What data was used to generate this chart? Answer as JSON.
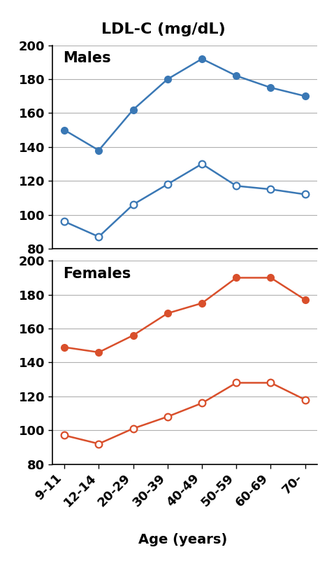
{
  "title": "LDL-C (mg/dL)",
  "xlabel": "Age (years)",
  "age_labels": [
    "9-11",
    "12-14",
    "20-29",
    "30-39",
    "40-49",
    "50-59",
    "60-69",
    "70-"
  ],
  "males": {
    "label": "Males",
    "filled": [
      150,
      138,
      162,
      180,
      192,
      182,
      175,
      170
    ],
    "open": [
      96,
      87,
      106,
      118,
      130,
      117,
      115,
      112
    ]
  },
  "females": {
    "label": "Females",
    "filled": [
      149,
      146,
      156,
      169,
      175,
      190,
      190,
      177
    ],
    "open": [
      97,
      92,
      101,
      108,
      116,
      128,
      128,
      118
    ]
  },
  "blue_color": "#3a78b5",
  "red_color": "#d94f2b",
  "ylim": [
    80,
    200
  ],
  "yticks": [
    80,
    100,
    120,
    140,
    160,
    180,
    200
  ],
  "marker_size": 7,
  "line_width": 1.8,
  "title_fontsize": 16,
  "label_fontsize": 14,
  "tick_fontsize": 13,
  "panel_label_fontsize": 15
}
